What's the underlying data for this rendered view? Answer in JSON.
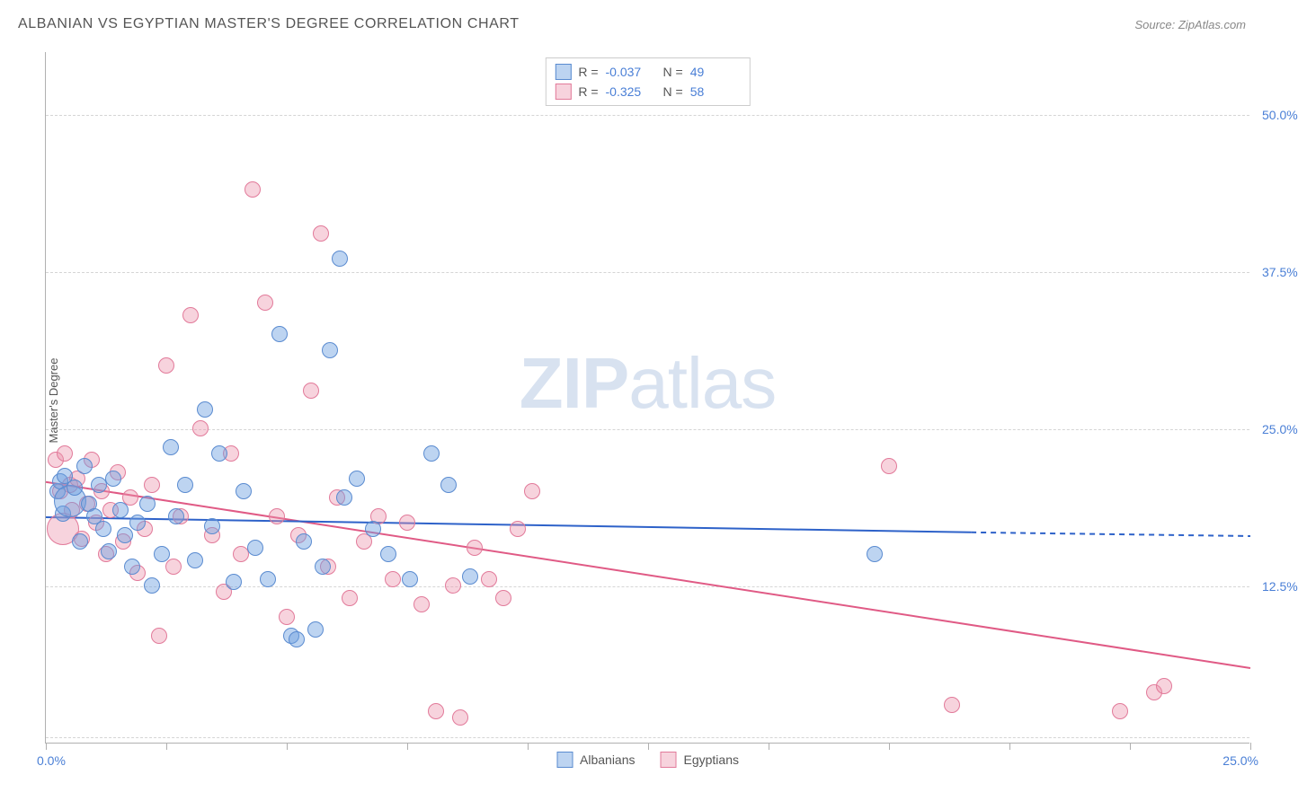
{
  "title": "ALBANIAN VS EGYPTIAN MASTER'S DEGREE CORRELATION CHART",
  "source": "Source: ZipAtlas.com",
  "watermark": {
    "bold": "ZIP",
    "rest": "atlas"
  },
  "y_axis_title": "Master's Degree",
  "chart": {
    "type": "scatter",
    "background_color": "#ffffff",
    "grid_color": "#d5d5d5",
    "axis_color": "#b0b0b0",
    "tick_label_color": "#4a7fd6",
    "xlim": [
      0,
      25
    ],
    "ylim": [
      0,
      55
    ],
    "xtick_positions": [
      0,
      2.5,
      5,
      7.5,
      10,
      12.5,
      15,
      17.5,
      20,
      22.5,
      25
    ],
    "xtick_labels_shown": {
      "start": "0.0%",
      "end": "25.0%"
    },
    "ytick_positions": [
      12.5,
      25.0,
      37.5,
      50.0
    ],
    "ytick_labels": [
      "12.5%",
      "25.0%",
      "37.5%",
      "50.0%"
    ],
    "gridline_y_positions": [
      0.5,
      12.5,
      25.0,
      37.5,
      50.0
    ],
    "marker_radius": 9,
    "marker_radius_large": 18,
    "series": {
      "albanians": {
        "label": "Albanians",
        "color_fill": "rgba(109,159,225,0.45)",
        "color_stroke": "#5a8bd0",
        "R": "-0.037",
        "N": "49",
        "trendline": {
          "color": "#2e62c9",
          "width": 2,
          "solid_to_x": 19.2,
          "y_at_x0": 18.0,
          "y_at_solid_end": 16.8,
          "y_at_xmax": 16.5
        },
        "points": [
          {
            "x": 0.25,
            "y": 20.0
          },
          {
            "x": 0.3,
            "y": 20.8
          },
          {
            "x": 0.35,
            "y": 18.2
          },
          {
            "x": 0.4,
            "y": 21.2
          },
          {
            "x": 0.5,
            "y": 19.2,
            "large": true
          },
          {
            "x": 0.6,
            "y": 20.3
          },
          {
            "x": 0.7,
            "y": 16.0
          },
          {
            "x": 0.8,
            "y": 22.0
          },
          {
            "x": 0.9,
            "y": 19.0
          },
          {
            "x": 1.0,
            "y": 18.0
          },
          {
            "x": 1.1,
            "y": 20.5
          },
          {
            "x": 1.2,
            "y": 17.0
          },
          {
            "x": 1.3,
            "y": 15.2
          },
          {
            "x": 1.4,
            "y": 21.0
          },
          {
            "x": 1.55,
            "y": 18.5
          },
          {
            "x": 1.65,
            "y": 16.5
          },
          {
            "x": 1.8,
            "y": 14.0
          },
          {
            "x": 1.9,
            "y": 17.5
          },
          {
            "x": 2.1,
            "y": 19.0
          },
          {
            "x": 2.2,
            "y": 12.5
          },
          {
            "x": 2.4,
            "y": 15.0
          },
          {
            "x": 2.6,
            "y": 23.5
          },
          {
            "x": 2.7,
            "y": 18.0
          },
          {
            "x": 2.9,
            "y": 20.5
          },
          {
            "x": 3.1,
            "y": 14.5
          },
          {
            "x": 3.3,
            "y": 26.5
          },
          {
            "x": 3.45,
            "y": 17.2
          },
          {
            "x": 3.6,
            "y": 23.0
          },
          {
            "x": 3.9,
            "y": 12.8
          },
          {
            "x": 4.1,
            "y": 20.0
          },
          {
            "x": 4.35,
            "y": 15.5
          },
          {
            "x": 4.6,
            "y": 13.0
          },
          {
            "x": 4.85,
            "y": 32.5
          },
          {
            "x": 5.1,
            "y": 8.5
          },
          {
            "x": 5.2,
            "y": 8.2
          },
          {
            "x": 5.35,
            "y": 16.0
          },
          {
            "x": 5.6,
            "y": 9.0
          },
          {
            "x": 5.75,
            "y": 14.0
          },
          {
            "x": 5.9,
            "y": 31.2
          },
          {
            "x": 6.1,
            "y": 38.5
          },
          {
            "x": 6.2,
            "y": 19.5
          },
          {
            "x": 6.45,
            "y": 21.0
          },
          {
            "x": 6.8,
            "y": 17.0
          },
          {
            "x": 7.1,
            "y": 15.0
          },
          {
            "x": 7.55,
            "y": 13.0
          },
          {
            "x": 8.0,
            "y": 23.0
          },
          {
            "x": 8.35,
            "y": 20.5
          },
          {
            "x": 8.8,
            "y": 13.2
          },
          {
            "x": 17.2,
            "y": 15.0
          }
        ]
      },
      "egyptians": {
        "label": "Egyptians",
        "color_fill": "rgba(235,145,170,0.40)",
        "color_stroke": "#e27a9a",
        "R": "-0.325",
        "N": "58",
        "trendline": {
          "color": "#e05a85",
          "width": 2,
          "solid_to_x": 25.0,
          "y_at_x0": 20.8,
          "y_at_solid_end": 6.0,
          "y_at_xmax": 6.0
        },
        "points": [
          {
            "x": 0.2,
            "y": 22.5
          },
          {
            "x": 0.3,
            "y": 20.0
          },
          {
            "x": 0.35,
            "y": 17.0,
            "large": true
          },
          {
            "x": 0.4,
            "y": 23.0
          },
          {
            "x": 0.5,
            "y": 20.5
          },
          {
            "x": 0.55,
            "y": 18.5
          },
          {
            "x": 0.65,
            "y": 21.0
          },
          {
            "x": 0.75,
            "y": 16.2
          },
          {
            "x": 0.85,
            "y": 19.0
          },
          {
            "x": 0.95,
            "y": 22.5
          },
          {
            "x": 1.05,
            "y": 17.5
          },
          {
            "x": 1.15,
            "y": 20.0
          },
          {
            "x": 1.25,
            "y": 15.0
          },
          {
            "x": 1.35,
            "y": 18.5
          },
          {
            "x": 1.5,
            "y": 21.5
          },
          {
            "x": 1.6,
            "y": 16.0
          },
          {
            "x": 1.75,
            "y": 19.5
          },
          {
            "x": 1.9,
            "y": 13.5
          },
          {
            "x": 2.05,
            "y": 17.0
          },
          {
            "x": 2.2,
            "y": 20.5
          },
          {
            "x": 2.35,
            "y": 8.5
          },
          {
            "x": 2.5,
            "y": 30.0
          },
          {
            "x": 2.65,
            "y": 14.0
          },
          {
            "x": 2.8,
            "y": 18.0
          },
          {
            "x": 3.0,
            "y": 34.0
          },
          {
            "x": 3.2,
            "y": 25.0
          },
          {
            "x": 3.45,
            "y": 16.5
          },
          {
            "x": 3.7,
            "y": 12.0
          },
          {
            "x": 3.85,
            "y": 23.0
          },
          {
            "x": 4.05,
            "y": 15.0
          },
          {
            "x": 4.3,
            "y": 44.0
          },
          {
            "x": 4.55,
            "y": 35.0
          },
          {
            "x": 4.8,
            "y": 18.0
          },
          {
            "x": 5.0,
            "y": 10.0
          },
          {
            "x": 5.25,
            "y": 16.5
          },
          {
            "x": 5.5,
            "y": 28.0
          },
          {
            "x": 5.7,
            "y": 40.5
          },
          {
            "x": 5.85,
            "y": 14.0
          },
          {
            "x": 6.05,
            "y": 19.5
          },
          {
            "x": 6.3,
            "y": 11.5
          },
          {
            "x": 6.6,
            "y": 16.0
          },
          {
            "x": 6.9,
            "y": 18.0
          },
          {
            "x": 7.2,
            "y": 13.0
          },
          {
            "x": 7.5,
            "y": 17.5
          },
          {
            "x": 7.8,
            "y": 11.0
          },
          {
            "x": 8.1,
            "y": 2.5
          },
          {
            "x": 8.45,
            "y": 12.5
          },
          {
            "x": 8.6,
            "y": 2.0
          },
          {
            "x": 8.9,
            "y": 15.5
          },
          {
            "x": 9.2,
            "y": 13.0
          },
          {
            "x": 9.5,
            "y": 11.5
          },
          {
            "x": 9.8,
            "y": 17.0
          },
          {
            "x": 10.1,
            "y": 20.0
          },
          {
            "x": 17.5,
            "y": 22.0
          },
          {
            "x": 18.8,
            "y": 3.0
          },
          {
            "x": 22.3,
            "y": 2.5
          },
          {
            "x": 23.0,
            "y": 4.0
          },
          {
            "x": 23.2,
            "y": 4.5
          }
        ]
      }
    }
  }
}
